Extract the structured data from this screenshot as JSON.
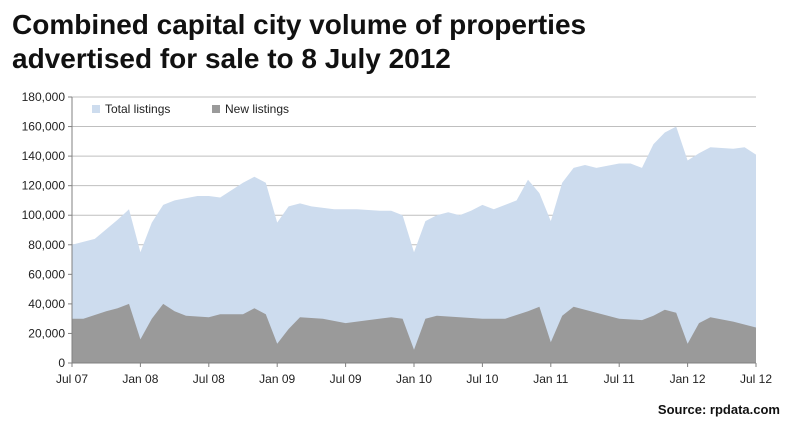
{
  "title_lines": [
    "Combined capital city volume of properties",
    "advertised for sale to 8 July 2012"
  ],
  "source": "Source: rpdata.com",
  "colors": {
    "total": "#cddcee",
    "new": "#9a9a9a",
    "grid": "#bfbfbf",
    "axis": "#808080"
  },
  "chart_data": {
    "type": "area",
    "title": "Combined capital city volume of properties advertised for sale to 8 July 2012",
    "xlabel": "",
    "ylabel": "",
    "ylim": [
      0,
      180000
    ],
    "yticks": [
      0,
      20000,
      40000,
      60000,
      80000,
      100000,
      120000,
      140000,
      160000,
      180000
    ],
    "ytick_labels": [
      "0",
      "20,000",
      "40,000",
      "60,000",
      "80,000",
      "100,000",
      "120,000",
      "140,000",
      "160,000",
      "180,000"
    ],
    "xticks": [
      "Jul 07",
      "Jan 08",
      "Jul 08",
      "Jan 09",
      "Jul 09",
      "Jan 10",
      "Jul 10",
      "Jan 11",
      "Jul 11",
      "Jan 12",
      "Jul 12"
    ],
    "xlim": [
      "Jul 07",
      "Jul 12"
    ],
    "grid": true,
    "legend": "top-left",
    "series": [
      {
        "name": "Total listings",
        "x": [
          "Jul 07",
          "Sep 07",
          "Nov 07",
          "Dec 07",
          "Jan 08",
          "Feb 08",
          "Mar 08",
          "Apr 08",
          "Jun 08",
          "Jul 08",
          "Aug 08",
          "Oct 08",
          "Nov 08",
          "Dec 08",
          "Jan 09",
          "Feb 09",
          "Mar 09",
          "Apr 09",
          "Jun 09",
          "Aug 09",
          "Oct 09",
          "Nov 09",
          "Dec 09",
          "Jan 10",
          "Feb 10",
          "Mar 10",
          "Apr 10",
          "May 10",
          "Jun 10",
          "Jul 10",
          "Aug 10",
          "Oct 10",
          "Nov 10",
          "Dec 10",
          "Jan 11",
          "Feb 11",
          "Mar 11",
          "Apr 11",
          "May 11",
          "Jul 11",
          "Aug 11",
          "Sep 11",
          "Oct 11",
          "Nov 11",
          "Dec 11",
          "Jan 12",
          "Feb 12",
          "Mar 12",
          "May 12",
          "Jun 12",
          "Jul 12"
        ],
        "values": [
          80000,
          84000,
          97000,
          104000,
          75000,
          95000,
          107000,
          110000,
          113000,
          113000,
          112000,
          122000,
          126000,
          122000,
          95000,
          106000,
          108000,
          106000,
          104000,
          104000,
          103000,
          103000,
          100000,
          75000,
          96000,
          100000,
          102000,
          100000,
          103000,
          107000,
          104000,
          110000,
          124000,
          115000,
          96000,
          122000,
          132000,
          134000,
          132000,
          135000,
          135000,
          132000,
          148000,
          156000,
          160000,
          137000,
          142000,
          146000,
          145000,
          146000,
          141000
        ]
      },
      {
        "name": "New listings",
        "x": [
          "Jul 07",
          "Aug 07",
          "Oct 07",
          "Nov 07",
          "Dec 07",
          "Jan 08",
          "Feb 08",
          "Mar 08",
          "Apr 08",
          "May 08",
          "Jul 08",
          "Aug 08",
          "Oct 08",
          "Nov 08",
          "Dec 08",
          "Jan 09",
          "Feb 09",
          "Mar 09",
          "May 09",
          "Jul 09",
          "Sep 09",
          "Nov 09",
          "Dec 09",
          "Jan 10",
          "Feb 10",
          "Mar 10",
          "May 10",
          "Jul 10",
          "Sep 10",
          "Nov 10",
          "Dec 10",
          "Jan 11",
          "Feb 11",
          "Mar 11",
          "May 11",
          "Jul 11",
          "Sep 11",
          "Oct 11",
          "Nov 11",
          "Dec 11",
          "Jan 12",
          "Feb 12",
          "Mar 12",
          "May 12",
          "Jul 12"
        ],
        "values": [
          30000,
          30000,
          35000,
          37000,
          40000,
          16000,
          30000,
          40000,
          35000,
          32000,
          31000,
          33000,
          33000,
          37000,
          33000,
          13000,
          23000,
          31000,
          30000,
          27000,
          29000,
          31000,
          30000,
          9000,
          30000,
          32000,
          31000,
          30000,
          30000,
          35000,
          38000,
          14000,
          32000,
          38000,
          34000,
          30000,
          29000,
          32000,
          36000,
          34000,
          13000,
          27000,
          31000,
          28000,
          24000
        ]
      }
    ]
  }
}
